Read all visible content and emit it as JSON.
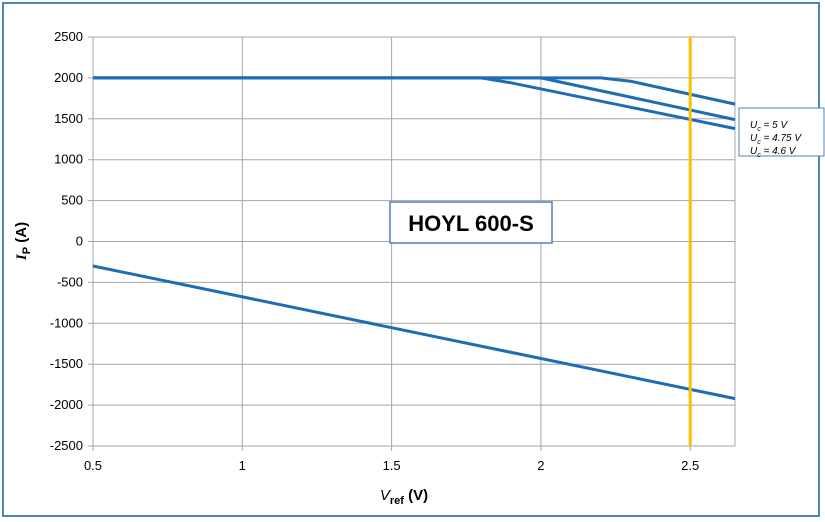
{
  "chart_data": {
    "type": "line",
    "xlabel": {
      "main": "V",
      "sub": "ref",
      "unit": " (V)"
    },
    "ylabel": {
      "main": "I",
      "sub": "P",
      "unit": " (A)"
    },
    "xlim": [
      0.5,
      2.65
    ],
    "ylim": [
      -2500,
      2500
    ],
    "x_ticks": [
      0.5,
      1,
      1.5,
      2,
      2.5
    ],
    "x_tick_labels": [
      "0.5",
      "1",
      "1.5",
      "2",
      "2.5"
    ],
    "y_ticks": [
      2500,
      2000,
      1500,
      1000,
      500,
      0,
      -500,
      -1000,
      -1500,
      -2000,
      -2500
    ],
    "y_tick_labels": [
      "2500",
      "2000",
      "1500",
      "1000",
      "500",
      "0",
      "-500",
      "-1000",
      "-1500",
      "-2000",
      "-2500"
    ],
    "grid": true,
    "series": [
      {
        "name": "Uc = 5 V",
        "x": [
          0.5,
          2.2,
          2.3,
          2.65
        ],
        "y": [
          2000,
          2000,
          1960,
          1680
        ]
      },
      {
        "name": "Uc = 4.75 V",
        "x": [
          0.5,
          2.0,
          2.65
        ],
        "y": [
          2000,
          2000,
          1490
        ]
      },
      {
        "name": "Uc = 4.6 V",
        "x": [
          0.5,
          1.8,
          1.9,
          2.65
        ],
        "y": [
          2000,
          2000,
          1940,
          1380
        ]
      },
      {
        "name": "",
        "x": [
          0.5,
          2.65
        ],
        "y": [
          -300,
          -1920
        ]
      }
    ],
    "reference_line": {
      "x": 2.5,
      "color": "#ffc000"
    },
    "annotation": "HOYL 600-S",
    "legend": {
      "placement": "right",
      "entries": [
        {
          "main": "U",
          "sub": "c",
          "rest": " = 5 V"
        },
        {
          "main": "U",
          "sub": "c",
          "rest": " = 4.75 V"
        },
        {
          "main": "U",
          "sub": "c",
          "rest": " = 4.6 V"
        }
      ]
    },
    "colors": {
      "series": "#1f6cb5",
      "grid": "#a6a6a6",
      "border": "#4f81bd"
    }
  }
}
